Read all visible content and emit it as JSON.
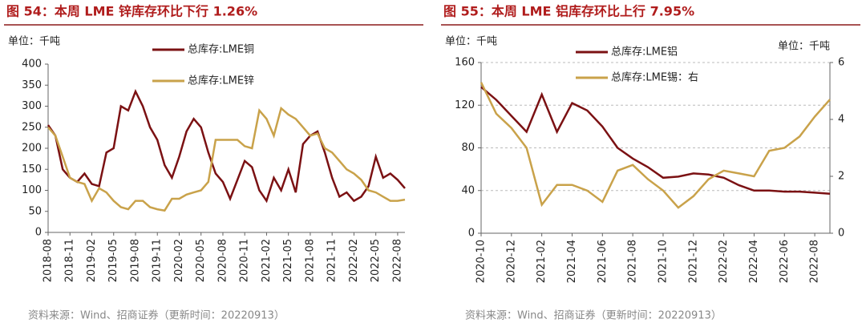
{
  "chart_data": [
    {
      "type": "line",
      "title": "图 54：本周 LME 锌库存环比下行 1.26%",
      "unit_label": "单位：千吨",
      "source": "资料来源：Wind、招商证券（更新时间：20220913）",
      "categories": [
        "2018-08",
        null,
        null,
        "2018-11",
        null,
        null,
        "2019-02",
        null,
        null,
        "2019-05",
        null,
        null,
        "2019-08",
        null,
        null,
        "2019-11",
        null,
        null,
        "2020-02",
        null,
        null,
        "2020-05",
        null,
        null,
        "2020-08",
        null,
        null,
        "2020-11",
        null,
        null,
        "2021-02",
        null,
        null,
        "2021-05",
        null,
        null,
        "2021-08",
        null,
        null,
        "2021-11",
        null,
        null,
        "2022-02",
        null,
        null,
        "2022-05",
        null,
        null,
        "2022-08",
        null
      ],
      "series": [
        {
          "name": "总库存:LME铜",
          "color": "#7b1113",
          "values": [
            255,
            230,
            150,
            130,
            120,
            140,
            115,
            110,
            190,
            200,
            300,
            290,
            335,
            300,
            250,
            220,
            160,
            130,
            180,
            240,
            270,
            250,
            190,
            140,
            120,
            80,
            125,
            170,
            155,
            100,
            75,
            130,
            100,
            150,
            95,
            210,
            230,
            240,
            190,
            130,
            85,
            95,
            75,
            85,
            110,
            180,
            130,
            140,
            125,
            105
          ]
        },
        {
          "name": "总库存:LME锌",
          "color": "#c9a24a",
          "values": [
            250,
            230,
            180,
            130,
            120,
            115,
            75,
            105,
            95,
            75,
            60,
            55,
            75,
            75,
            60,
            55,
            52,
            80,
            80,
            90,
            95,
            100,
            120,
            220,
            220,
            220,
            220,
            205,
            200,
            290,
            270,
            230,
            295,
            280,
            270,
            250,
            230,
            235,
            200,
            190,
            170,
            150,
            140,
            125,
            100,
            95,
            85,
            75,
            75,
            78
          ]
        }
      ],
      "ylim": [
        0,
        400
      ],
      "yticks": [
        0,
        50,
        100,
        150,
        200,
        250,
        300,
        350,
        400
      ],
      "grid": false
    },
    {
      "type": "line",
      "title": "图 55：本周 LME 铝库存环比上行 7.95%",
      "unit_label": "单位：千吨",
      "unit_label_right": "单位：千吨",
      "source": "资料来源：Wind、招商证券（更新时间：20220913）",
      "categories": [
        "2020-10",
        null,
        "2020-12",
        null,
        "2021-02",
        null,
        "2021-04",
        null,
        "2021-06",
        null,
        "2021-08",
        null,
        "2021-10",
        null,
        "2021-12",
        null,
        "2022-02",
        null,
        "2022-04",
        null,
        "2022-06",
        null,
        "2022-08",
        null
      ],
      "series": [
        {
          "name": "总库存:LME铝",
          "color": "#7b1113",
          "values": [
            137,
            125,
            110,
            95,
            130,
            95,
            122,
            115,
            100,
            80,
            70,
            62,
            52,
            53,
            56,
            55,
            52,
            45,
            40,
            40,
            39,
            39,
            38,
            37
          ]
        },
        {
          "name": "总库存:LME锡：右",
          "color": "#c9a24a",
          "axis": "y2",
          "values": [
            5.3,
            4.2,
            3.7,
            3.0,
            1.0,
            1.7,
            1.7,
            1.5,
            1.1,
            2.2,
            2.4,
            1.9,
            1.5,
            0.9,
            1.3,
            1.9,
            2.2,
            2.1,
            2.0,
            2.9,
            3.0,
            3.4,
            4.1,
            4.7
          ]
        }
      ],
      "ylim": [
        0,
        160
      ],
      "yticks": [
        0,
        40,
        80,
        120,
        160
      ],
      "y2lim": [
        0,
        6
      ],
      "y2ticks": [
        0,
        2,
        4,
        6
      ],
      "grid": true
    }
  ]
}
